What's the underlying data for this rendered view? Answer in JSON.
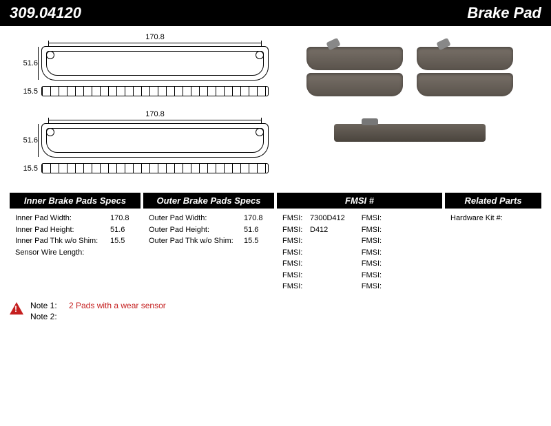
{
  "header": {
    "part_number": "309.04120",
    "part_type": "Brake Pad"
  },
  "dims": {
    "width_top": "170.8",
    "height_left": "51.6",
    "thickness": "15.5"
  },
  "specs": {
    "inner": {
      "title": "Inner Brake Pads Specs",
      "rows": [
        {
          "label": "Inner Pad Width:",
          "value": "170.8"
        },
        {
          "label": "Inner Pad Height:",
          "value": "51.6"
        },
        {
          "label": "Inner Pad Thk w/o Shim:",
          "value": "15.5"
        },
        {
          "label": "Sensor Wire Length:",
          "value": ""
        }
      ]
    },
    "outer": {
      "title": "Outer Brake Pads Specs",
      "rows": [
        {
          "label": "Outer Pad Width:",
          "value": "170.8"
        },
        {
          "label": "Outer Pad Height:",
          "value": "51.6"
        },
        {
          "label": "Outer Pad Thk w/o Shim:",
          "value": "15.5"
        }
      ]
    },
    "fmsi": {
      "title": "FMSI #",
      "left": [
        {
          "label": "FMSI:",
          "value": "7300D412"
        },
        {
          "label": "FMSI:",
          "value": "D412"
        },
        {
          "label": "FMSI:",
          "value": ""
        },
        {
          "label": "FMSI:",
          "value": ""
        },
        {
          "label": "FMSI:",
          "value": ""
        },
        {
          "label": "FMSI:",
          "value": ""
        },
        {
          "label": "FMSI:",
          "value": ""
        }
      ],
      "right": [
        {
          "label": "FMSI:",
          "value": ""
        },
        {
          "label": "FMSI:",
          "value": ""
        },
        {
          "label": "FMSI:",
          "value": ""
        },
        {
          "label": "FMSI:",
          "value": ""
        },
        {
          "label": "FMSI:",
          "value": ""
        },
        {
          "label": "FMSI:",
          "value": ""
        },
        {
          "label": "FMSI:",
          "value": ""
        }
      ]
    },
    "related": {
      "title": "Related Parts",
      "rows": [
        {
          "label": "Hardware Kit #:",
          "value": ""
        }
      ]
    }
  },
  "notes": {
    "n1_label": "Note 1:",
    "n1_text": "2 Pads with a wear sensor",
    "n2_label": "Note 2:",
    "n2_text": ""
  }
}
